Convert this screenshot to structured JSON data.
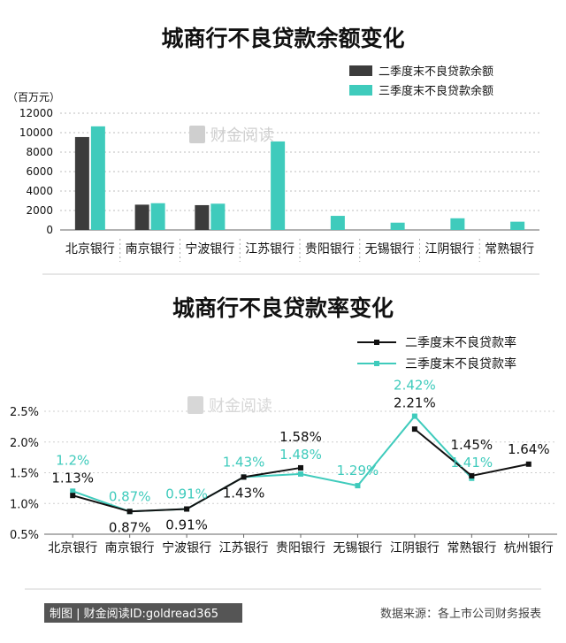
{
  "chart_data": [
    {
      "type": "bar",
      "title": "城商行不良贷款余额变化",
      "ylabel": "（百万元）",
      "ylim": [
        0,
        12000
      ],
      "yticks": [
        "0",
        "2000",
        "4000",
        "6000",
        "8000",
        "10000",
        "12000"
      ],
      "grid": true,
      "legend_position": "top-right",
      "categories": [
        "北京银行",
        "南京银行",
        "宁波银行",
        "江苏银行",
        "贵阳银行",
        "无锡银行",
        "江阴银行",
        "常熟银行"
      ],
      "series": [
        {
          "name": "二季度末不良贷款余额",
          "color": "#3c3c3c",
          "values": [
            9550,
            2600,
            2550,
            null,
            null,
            null,
            null,
            null
          ]
        },
        {
          "name": "三季度末不良贷款余额",
          "color": "#3fcbbc",
          "values": [
            10650,
            2750,
            2700,
            9100,
            1450,
            750,
            1200,
            850
          ]
        }
      ]
    },
    {
      "type": "line",
      "title": "城商行不良贷款率变化",
      "ylim": [
        0.5,
        2.5
      ],
      "yticks": [
        "0.5%",
        "1.0%",
        "1.5%",
        "2.0%",
        "2.5%"
      ],
      "grid": true,
      "legend_position": "top-right",
      "categories": [
        "北京银行",
        "南京银行",
        "宁波银行",
        "江苏银行",
        "贵阳银行",
        "无锡银行",
        "江阴银行",
        "常熟银行",
        "杭州银行"
      ],
      "series": [
        {
          "name": "二季度末不良贷款率",
          "color": "#111111",
          "values": [
            1.13,
            0.87,
            0.91,
            1.43,
            1.58,
            null,
            2.21,
            1.45,
            1.64
          ],
          "labels": [
            "1.13%",
            "0.87%",
            "0.91%",
            "1.43%",
            "1.58%",
            null,
            "2.21%",
            "1.45%",
            "1.64%"
          ]
        },
        {
          "name": "三季度末不良贷款率",
          "color": "#3fcbbc",
          "values": [
            1.2,
            0.87,
            0.91,
            1.43,
            1.48,
            1.29,
            2.42,
            1.41,
            null
          ],
          "labels": [
            "1.2%",
            "0.87%",
            "0.91%",
            "1.43%",
            "1.48%",
            "1.29%",
            "2.42%",
            "1.41%",
            null
          ]
        }
      ]
    }
  ],
  "watermark": "财金阅读",
  "footer": {
    "left": "制图 | 财金阅读ID:goldread365",
    "right": "数据来源：各上市公司财务报表"
  }
}
